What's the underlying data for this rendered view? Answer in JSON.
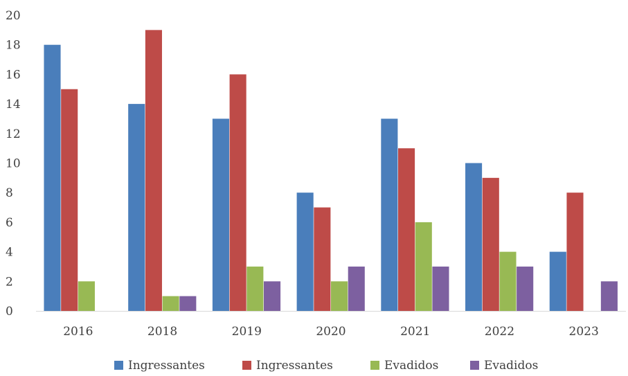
{
  "chart_data": {
    "type": "bar",
    "title": "",
    "xlabel": "",
    "ylabel": "",
    "categories": [
      "2016",
      "2018",
      "2019",
      "2020",
      "2021",
      "2022",
      "2023"
    ],
    "ylim": [
      0,
      20
    ],
    "yticks": [
      0,
      2,
      4,
      6,
      8,
      10,
      12,
      14,
      16,
      18,
      20
    ],
    "grid": false,
    "legend_position": "bottom",
    "series": [
      {
        "name": "Ingressantes",
        "color": "#4a7ebb",
        "values": [
          18,
          14,
          13,
          8,
          13,
          10,
          4
        ]
      },
      {
        "name": "Ingressantes",
        "color": "#be4b48",
        "values": [
          15,
          19,
          16,
          7,
          11,
          9,
          8
        ]
      },
      {
        "name": "Evadidos",
        "color": "#98b954",
        "values": [
          2,
          1,
          3,
          2,
          6,
          4,
          0
        ]
      },
      {
        "name": "Evadidos",
        "color": "#7d60a0",
        "values": [
          0,
          1,
          2,
          3,
          3,
          3,
          2
        ]
      }
    ]
  }
}
